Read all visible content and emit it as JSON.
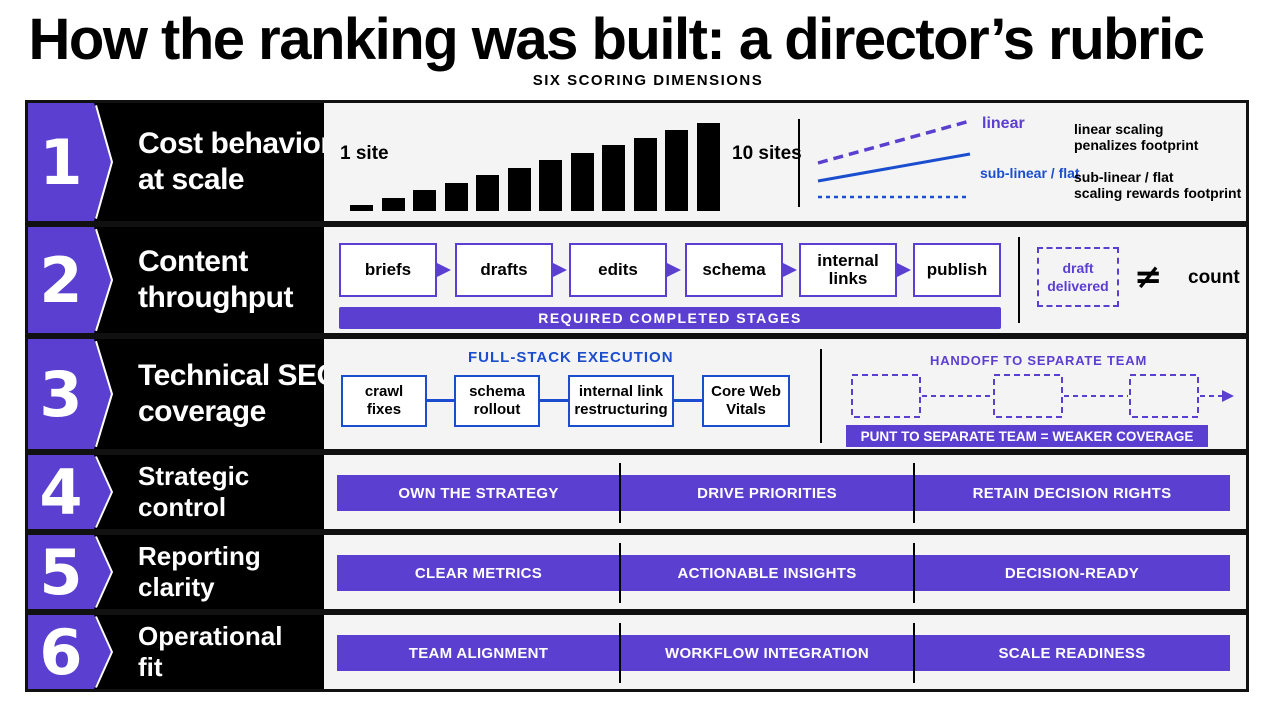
{
  "title": "How the ranking was built: a director’s rubric",
  "subtitle": "SIX SCORING DIMENSIONS",
  "colors": {
    "accent": "#5b3fd0",
    "blue": "#1a4ecf",
    "black": "#000000"
  },
  "rows": [
    {
      "number": "1",
      "lines": [
        "Cost behavior",
        "at scale"
      ]
    },
    {
      "number": "2",
      "lines": [
        "Content",
        "throughput"
      ]
    },
    {
      "number": "3",
      "lines": [
        "Technical SEO",
        "coverage"
      ]
    },
    {
      "number": "4",
      "lines": [
        "Strategic",
        "control"
      ]
    },
    {
      "number": "5",
      "lines": [
        "Reporting",
        "clarity"
      ]
    },
    {
      "number": "6",
      "lines": [
        "Operational",
        "fit"
      ]
    }
  ],
  "cost": {
    "left_label": "1 site",
    "right_label": "10 sites",
    "bar_heights": [
      1,
      2,
      3,
      4,
      5,
      6,
      7,
      8,
      9,
      10,
      11,
      12
    ],
    "legend_linear": "linear",
    "legend_sublinear": "sub-linear / flat",
    "note_linear": [
      "linear scaling",
      "penalizes footprint"
    ],
    "note_sublinear": [
      "sub-linear / flat",
      "scaling rewards footprint"
    ]
  },
  "throughput": {
    "stages": [
      "briefs",
      "drafts",
      "edits",
      "schema",
      "internal\nlinks",
      "publish"
    ],
    "bar_label": "REQUIRED COMPLETED STAGES",
    "draft_box": [
      "draft",
      "delivered"
    ],
    "neq": "≠",
    "count": "count"
  },
  "technical": {
    "fullstack_title": "FULL-STACK EXECUTION",
    "boxes": [
      "crawl\nfixes",
      "schema\nrollout",
      "internal link\nrestructuring",
      "Core Web\nVitals"
    ],
    "handoff_title": "HANDOFF TO SEPARATE TEAM",
    "handoff_bar": "PUNT TO SEPARATE TEAM = WEAKER COVERAGE"
  },
  "pills": [
    [
      "OWN THE STRATEGY",
      "DRIVE PRIORITIES",
      "RETAIN DECISION RIGHTS"
    ],
    [
      "CLEAR METRICS",
      "ACTIONABLE INSIGHTS",
      "DECISION-READY"
    ],
    [
      "TEAM ALIGNMENT",
      "WORKFLOW INTEGRATION",
      "SCALE READINESS"
    ]
  ]
}
